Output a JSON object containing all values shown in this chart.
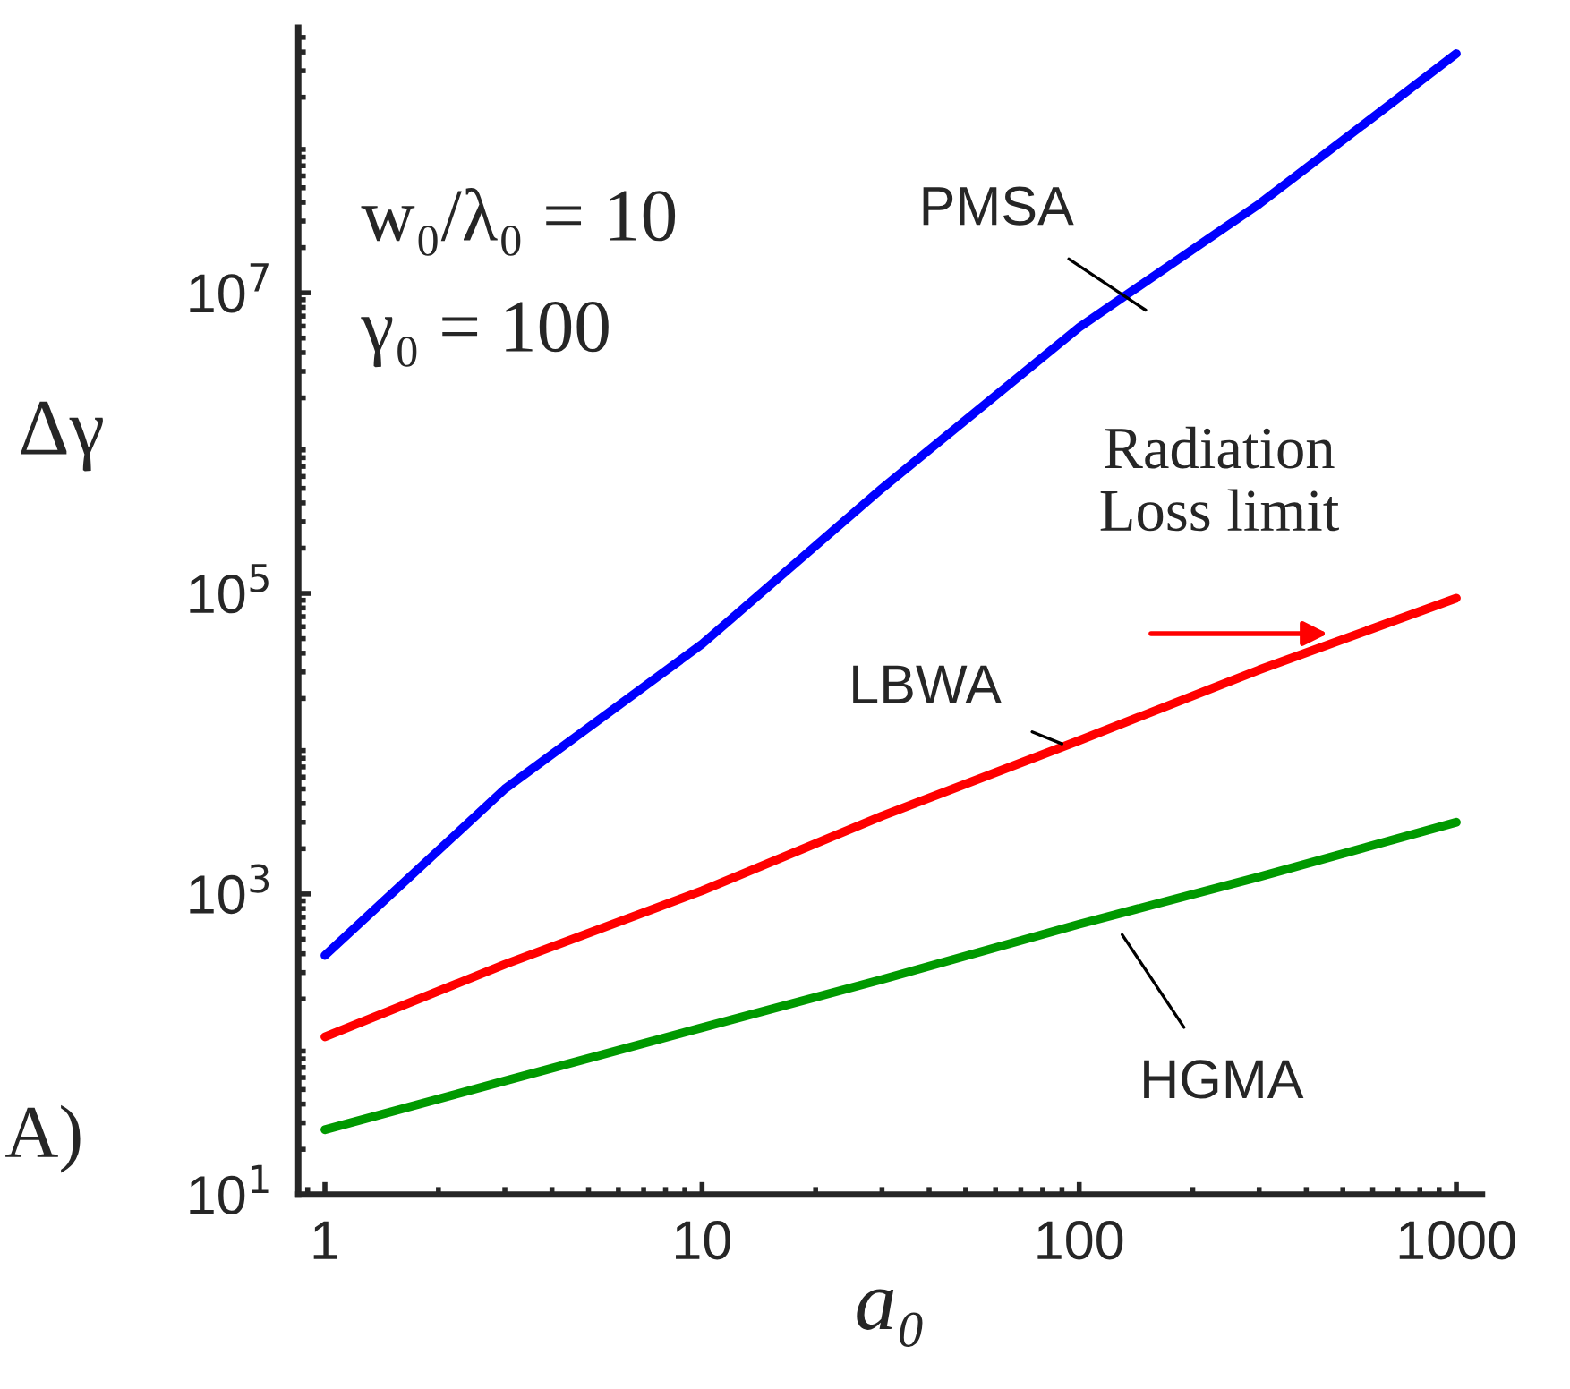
{
  "chart_data": {
    "type": "line",
    "xlabel": "a₀",
    "ylabel": "Δγ",
    "log": "xy",
    "legend": false,
    "grid": false,
    "xlim": [
      0.85,
      1170
    ],
    "xticks": [
      1,
      10,
      100,
      1000
    ],
    "ylim": [
      10,
      580000000.0
    ],
    "yticks": [
      {
        "value": 10,
        "label": "10$^{1}$"
      },
      {
        "value": 1000,
        "label": "10$^{3}$"
      },
      {
        "value": 100000,
        "label": "10$^{5}$"
      },
      {
        "value": 10000000,
        "label": "10$^{7}$"
      }
    ],
    "x": [
      1,
      3,
      10,
      30,
      100,
      300,
      1000
    ],
    "series": [
      {
        "name": "PMSA",
        "color": "#0000ff",
        "values": [
          390,
          5000,
          46000,
          500000,
          5900000,
          39000000,
          390000000
        ]
      },
      {
        "name": "LBWA",
        "color": "#ff0000",
        "values": [
          112,
          340,
          1050,
          3300,
          10500,
          31000,
          93000
        ]
      },
      {
        "name": "HGMA",
        "color": "#009900",
        "values": [
          27,
          57,
          129,
          270,
          630,
          1300,
          3000
        ]
      }
    ],
    "annotations": [
      "w₀/λ₀ = 10",
      "γ₀ = 100",
      {
        "text": "Radiation\nLoss limit",
        "x": 470,
        "y": 54000
      },
      "A)"
    ]
  }
}
